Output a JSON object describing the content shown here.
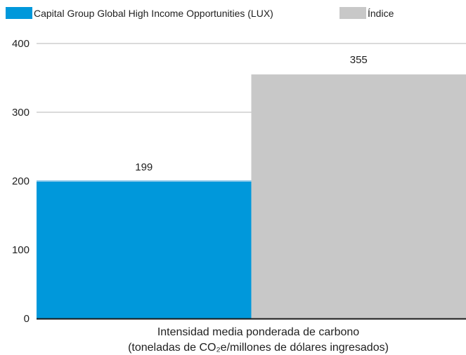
{
  "chart_data": {
    "type": "bar",
    "categories": [
      "Intensidad media ponderada de carbono (toneladas de CO₂e/millones de dólares ingresados)"
    ],
    "category_lines": [
      "Intensidad media ponderada de carbono",
      "(toneladas de CO₂e/millones de dólares ingresados)"
    ],
    "series": [
      {
        "name": "Capital Group Global High Income Opportunities (LUX)",
        "values": [
          199
        ],
        "color": "#0098db"
      },
      {
        "name": "Índice",
        "values": [
          355
        ],
        "color": "#c8c8c8"
      }
    ],
    "value_labels": [
      "199",
      "355"
    ],
    "title": "",
    "xlabel": "",
    "ylabel": "",
    "ylim": [
      0,
      400
    ],
    "yticks": [
      0,
      100,
      200,
      300,
      400
    ],
    "grid": true,
    "legend_position": "top-left"
  }
}
